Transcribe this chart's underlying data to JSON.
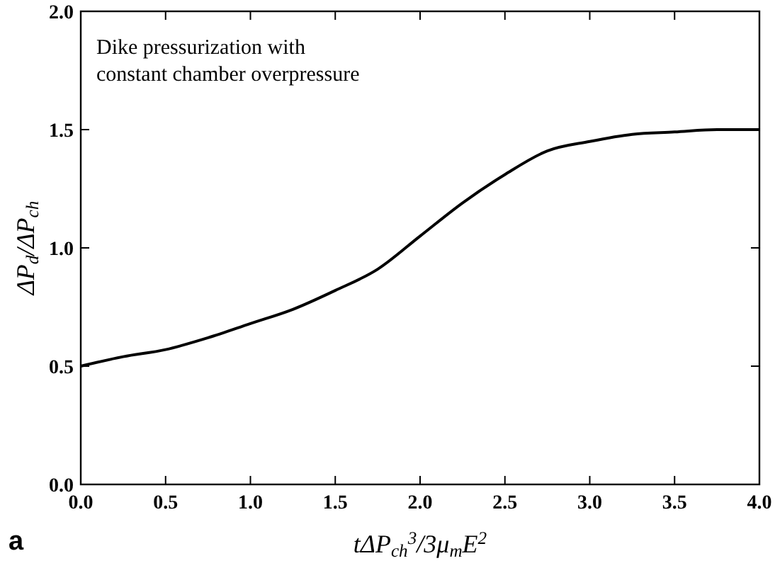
{
  "chart_data": {
    "type": "line",
    "xlabel": "tΔP$_{ch}$$^{3}$/3μ$_{m}$E$^{2}$",
    "ylabel": "ΔP$_{d}$/ΔP$_{ch}$",
    "annotations": [
      "Dike pressurization with\nconstant chamber overpressure",
      "a"
    ],
    "x": [
      0,
      0.25,
      0.5,
      0.75,
      1.0,
      1.25,
      1.5,
      1.75,
      2.0,
      2.25,
      2.5,
      2.75,
      3.0,
      3.25,
      3.5,
      3.75,
      4.0
    ],
    "series": [
      {
        "color": "#000000",
        "values": [
          0.5,
          0.54,
          0.57,
          0.62,
          0.68,
          0.74,
          0.82,
          0.91,
          1.05,
          1.19,
          1.31,
          1.41,
          1.45,
          1.48,
          1.49,
          1.5,
          1.5
        ]
      }
    ],
    "xlim": [
      0,
      4
    ],
    "ylim": [
      0,
      2
    ],
    "xticks": [
      {
        "value": 0,
        "label": "0.0"
      },
      {
        "value": 0.5,
        "label": "0.5"
      },
      {
        "value": 1,
        "label": "1.0"
      },
      {
        "value": 1.5,
        "label": "1.5"
      },
      {
        "value": 2,
        "label": "2.0"
      },
      {
        "value": 2.5,
        "label": "2.5"
      },
      {
        "value": 3,
        "label": "3.0"
      },
      {
        "value": 3.5,
        "label": "3.5"
      },
      {
        "value": 4,
        "label": "4.0"
      }
    ],
    "yticks": [
      {
        "value": 0,
        "label": "0.0"
      },
      {
        "value": 0.5,
        "label": "0.5"
      },
      {
        "value": 1,
        "label": "1.0"
      },
      {
        "value": 1.5,
        "label": "1.5"
      },
      {
        "value": 2,
        "label": "2.0"
      }
    ],
    "grid": false,
    "marker": "none",
    "line_style": "solid"
  }
}
